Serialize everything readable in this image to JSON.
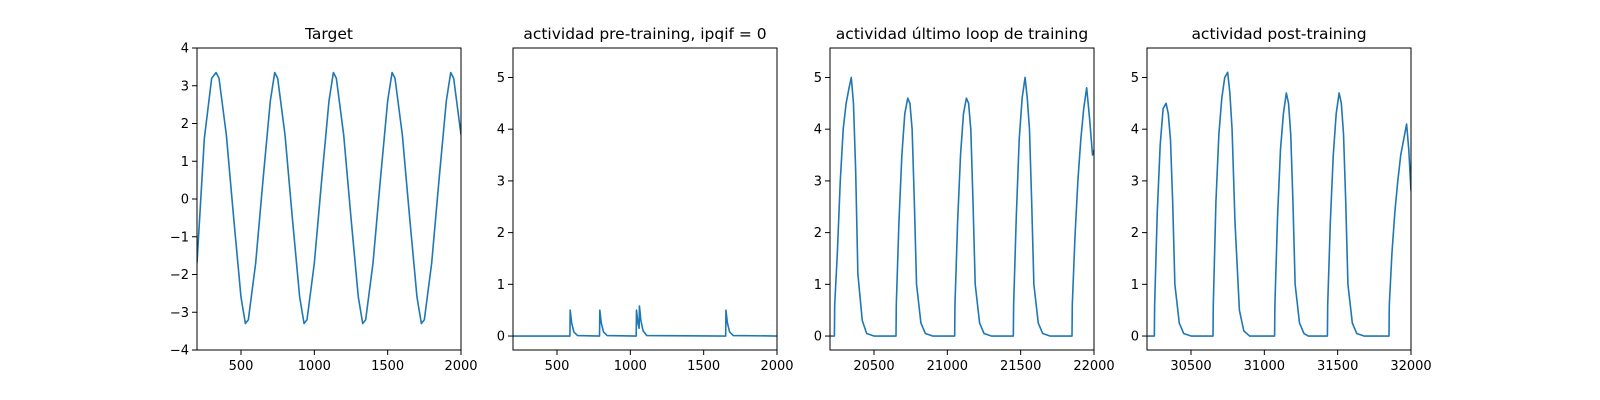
{
  "colors": {
    "series": "#1f77b4",
    "axes": "#000000",
    "background": "#ffffff"
  },
  "chart_data": [
    {
      "type": "line",
      "title": "Target",
      "xlabel": "",
      "ylabel": "",
      "xlim": [
        200,
        2000
      ],
      "ylim": [
        -4,
        4
      ],
      "xticks": [
        500,
        1000,
        1500,
        2000
      ],
      "yticks": [
        -4,
        -3,
        -2,
        -1,
        0,
        1,
        2,
        3,
        4
      ],
      "grid": false,
      "series": [
        {
          "x": [
            200,
            250,
            300,
            330,
            350,
            400,
            450,
            500,
            530,
            550,
            600,
            650,
            700,
            730,
            750,
            800,
            850,
            900,
            930,
            950,
            1000,
            1050,
            1100,
            1130,
            1150,
            1200,
            1250,
            1300,
            1330,
            1350,
            1400,
            1450,
            1500,
            1530,
            1550,
            1600,
            1650,
            1700,
            1730,
            1750,
            1800,
            1850,
            1900,
            1930,
            1950,
            2000
          ],
          "y": [
            -1.7,
            1.6,
            3.2,
            3.35,
            3.2,
            1.7,
            -0.5,
            -2.6,
            -3.3,
            -3.2,
            -1.7,
            0.5,
            2.6,
            3.35,
            3.2,
            1.7,
            -0.5,
            -2.6,
            -3.3,
            -3.2,
            -1.7,
            0.5,
            2.6,
            3.35,
            3.2,
            1.7,
            -0.5,
            -2.6,
            -3.3,
            -3.2,
            -1.7,
            0.5,
            2.6,
            3.35,
            3.2,
            1.7,
            -0.5,
            -2.6,
            -3.3,
            -3.2,
            -1.7,
            0.5,
            2.6,
            3.35,
            3.2,
            1.7
          ]
        }
      ]
    },
    {
      "type": "line",
      "title": "actividad pre-training, ipqif = 0",
      "xlabel": "",
      "ylabel": "",
      "xlim": [
        200,
        2000
      ],
      "ylim": [
        -0.27,
        5.57
      ],
      "xticks": [
        500,
        1000,
        1500,
        2000
      ],
      "yticks": [
        0,
        1,
        2,
        3,
        4,
        5
      ],
      "grid": false,
      "series": [
        {
          "x": [
            200,
            588,
            590,
            600,
            615,
            640,
            790,
            792,
            802,
            817,
            842,
            1040,
            1042,
            1052,
            1060,
            1062,
            1072,
            1087,
            1112,
            1650,
            1652,
            1662,
            1677,
            1702,
            2000
          ],
          "y": [
            0,
            0,
            0.5,
            0.25,
            0.08,
            0.01,
            0,
            0.5,
            0.25,
            0.08,
            0.01,
            0,
            0.5,
            0.25,
            0.15,
            0.58,
            0.3,
            0.1,
            0.01,
            0,
            0.5,
            0.25,
            0.08,
            0.01,
            0
          ]
        }
      ]
    },
    {
      "type": "line",
      "title": "actividad último loop de training",
      "xlabel": "",
      "ylabel": "",
      "xlim": [
        20200,
        22000
      ],
      "ylim": [
        -0.27,
        5.57
      ],
      "xticks": [
        20500,
        21000,
        21500,
        22000
      ],
      "yticks": [
        0,
        1,
        2,
        3,
        4,
        5
      ],
      "grid": false,
      "series": [
        {
          "x": [
            20200,
            20230,
            20232,
            20250,
            20270,
            20290,
            20310,
            20330,
            20345,
            20360,
            20375,
            20390,
            20420,
            20450,
            20500,
            20650,
            20652,
            20670,
            20690,
            20710,
            20730,
            20745,
            20760,
            20775,
            20790,
            20820,
            20850,
            20900,
            21050,
            21052,
            21070,
            21090,
            21110,
            21130,
            21145,
            21160,
            21175,
            21190,
            21220,
            21250,
            21300,
            21450,
            21452,
            21470,
            21490,
            21510,
            21530,
            21545,
            21560,
            21575,
            21590,
            21620,
            21650,
            21700,
            21850,
            21852,
            21870,
            21890,
            21910,
            21930,
            21950,
            21970,
            21990,
            22000
          ],
          "y": [
            0,
            0,
            0.6,
            1.6,
            3.0,
            4.0,
            4.5,
            4.8,
            5.0,
            4.5,
            3.2,
            1.2,
            0.3,
            0.05,
            0,
            0,
            0.6,
            2.2,
            3.5,
            4.3,
            4.6,
            4.5,
            4.0,
            2.6,
            1.0,
            0.25,
            0.05,
            0,
            0,
            0.6,
            2.2,
            3.5,
            4.3,
            4.6,
            4.5,
            4.0,
            2.6,
            1.0,
            0.25,
            0.05,
            0,
            0,
            0.6,
            2.3,
            3.8,
            4.6,
            5.0,
            4.6,
            4.0,
            2.6,
            1.0,
            0.25,
            0.05,
            0,
            0,
            0.6,
            1.9,
            3.0,
            3.8,
            4.4,
            4.8,
            4.2,
            3.5,
            3.6
          ]
        }
      ]
    },
    {
      "type": "line",
      "title": "actividad post-training",
      "xlabel": "",
      "ylabel": "",
      "xlim": [
        30200,
        32000
      ],
      "ylim": [
        -0.27,
        5.57
      ],
      "xticks": [
        30500,
        31000,
        31500,
        32000
      ],
      "yticks": [
        0,
        1,
        2,
        3,
        4,
        5
      ],
      "grid": false,
      "series": [
        {
          "x": [
            30200,
            30250,
            30252,
            30270,
            30290,
            30310,
            30330,
            30345,
            30360,
            30375,
            30390,
            30420,
            30450,
            30500,
            30650,
            30652,
            30670,
            30690,
            30710,
            30730,
            30750,
            30765,
            30780,
            30800,
            30830,
            30860,
            30900,
            31070,
            31072,
            31090,
            31110,
            31130,
            31150,
            31165,
            31180,
            31195,
            31210,
            31240,
            31270,
            31300,
            31430,
            31432,
            31450,
            31470,
            31490,
            31510,
            31525,
            31540,
            31555,
            31570,
            31600,
            31630,
            31680,
            31850,
            31852,
            31870,
            31890,
            31910,
            31930,
            31950,
            31970,
            31985,
            32000
          ],
          "y": [
            0,
            0,
            0.6,
            2.4,
            3.7,
            4.4,
            4.5,
            4.3,
            3.8,
            2.6,
            1.0,
            0.25,
            0.05,
            0,
            0,
            0.6,
            2.6,
            3.9,
            4.6,
            5.0,
            5.1,
            4.7,
            4.0,
            2.2,
            0.5,
            0.1,
            0,
            0,
            0.6,
            2.3,
            3.6,
            4.3,
            4.7,
            4.5,
            3.9,
            2.6,
            1.0,
            0.25,
            0.05,
            0,
            0,
            0.6,
            2.2,
            3.5,
            4.3,
            4.7,
            4.5,
            3.9,
            2.6,
            1.0,
            0.25,
            0.05,
            0,
            0,
            0.6,
            1.6,
            2.4,
            3.0,
            3.5,
            3.8,
            4.1,
            3.6,
            2.8
          ]
        }
      ]
    }
  ]
}
